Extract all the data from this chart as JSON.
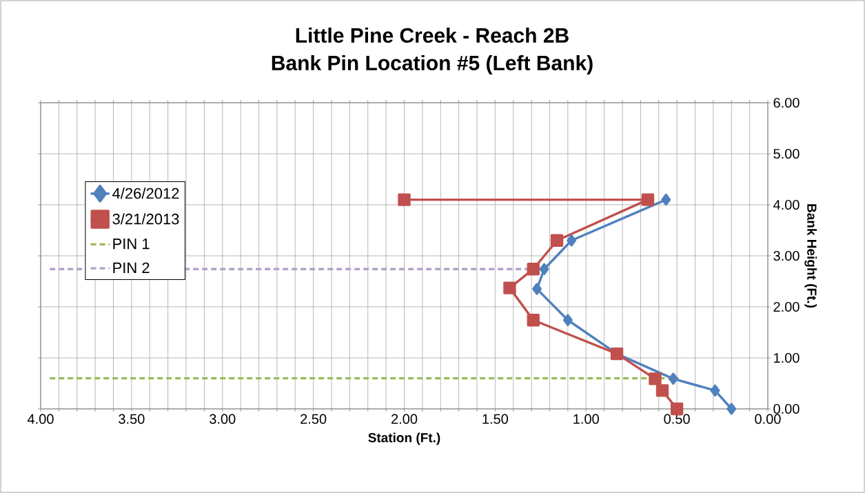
{
  "chart_data": {
    "type": "line",
    "title": "Little Pine Creek - Reach 2B\nBank Pin Location #5 (Left Bank)",
    "xlabel": "Station (Ft.)",
    "ylabel": "Bank Height (Ft.)",
    "xlim": [
      4,
      0
    ],
    "ylim": [
      0,
      6
    ],
    "xticks": [
      {
        "value": 4,
        "label": "4.00"
      },
      {
        "value": 3.9,
        "label": null
      },
      {
        "value": 3.8,
        "label": null
      },
      {
        "value": 3.7,
        "label": null
      },
      {
        "value": 3.6,
        "label": null
      },
      {
        "value": 3.5,
        "label": "3.50"
      },
      {
        "value": 3.4,
        "label": null
      },
      {
        "value": 3.3,
        "label": null
      },
      {
        "value": 3.2,
        "label": null
      },
      {
        "value": 3.1,
        "label": null
      },
      {
        "value": 3,
        "label": "3.00"
      },
      {
        "value": 2.9,
        "label": null
      },
      {
        "value": 2.8,
        "label": null
      },
      {
        "value": 2.7,
        "label": null
      },
      {
        "value": 2.6,
        "label": null
      },
      {
        "value": 2.5,
        "label": "2.50"
      },
      {
        "value": 2.4,
        "label": null
      },
      {
        "value": 2.3,
        "label": null
      },
      {
        "value": 2.2,
        "label": null
      },
      {
        "value": 2.1,
        "label": null
      },
      {
        "value": 2,
        "label": "2.00"
      },
      {
        "value": 1.9,
        "label": null
      },
      {
        "value": 1.8,
        "label": null
      },
      {
        "value": 1.7,
        "label": null
      },
      {
        "value": 1.6,
        "label": null
      },
      {
        "value": 1.5,
        "label": "1.50"
      },
      {
        "value": 1.4,
        "label": null
      },
      {
        "value": 1.3,
        "label": null
      },
      {
        "value": 1.2,
        "label": null
      },
      {
        "value": 1.1,
        "label": null
      },
      {
        "value": 1,
        "label": "1.00"
      },
      {
        "value": 0.9,
        "label": null
      },
      {
        "value": 0.8,
        "label": null
      },
      {
        "value": 0.7,
        "label": null
      },
      {
        "value": 0.6,
        "label": null
      },
      {
        "value": 0.5,
        "label": "0.50"
      },
      {
        "value": 0.4,
        "label": null
      },
      {
        "value": 0.3,
        "label": null
      },
      {
        "value": 0.2,
        "label": null
      },
      {
        "value": 0.1,
        "label": null
      },
      {
        "value": 0,
        "label": "0.00"
      }
    ],
    "yticks": [
      {
        "value": 0,
        "label": "0.00"
      },
      {
        "value": 1,
        "label": "1.00"
      },
      {
        "value": 2,
        "label": "2.00"
      },
      {
        "value": 3,
        "label": "3.00"
      },
      {
        "value": 4,
        "label": "4.00"
      },
      {
        "value": 5,
        "label": "5.00"
      },
      {
        "value": 6,
        "label": "6.00"
      }
    ],
    "grid": true,
    "legend": "left",
    "series": [
      {
        "name": "4/26/2012",
        "color": "#4f81bd",
        "marker": "diamond",
        "line_style": "solid",
        "x": [
          0.56,
          1.08,
          1.23,
          1.27,
          1.1,
          0.83,
          0.52,
          0.29,
          0.2
        ],
        "values": [
          4.1,
          3.3,
          2.74,
          2.35,
          1.74,
          1.08,
          0.59,
          0.36,
          0
        ]
      },
      {
        "name": "3/21/2013",
        "color": "#c0504d",
        "marker": "square",
        "line_style": "solid",
        "x": [
          2.0,
          0.66,
          1.16,
          1.29,
          1.42,
          1.29,
          0.83,
          0.62,
          0.58,
          0.5
        ],
        "values": [
          4.1,
          4.1,
          3.3,
          2.74,
          2.37,
          1.74,
          1.08,
          0.59,
          0.36,
          0
        ]
      },
      {
        "name": "PIN 1",
        "color": "#9bbb59",
        "marker": "none",
        "line_style": "dashed",
        "x": [
          3.95,
          0.49
        ],
        "values": [
          0.6,
          0.6
        ]
      },
      {
        "name": "PIN 2",
        "color": "#b3a2c7",
        "marker": "none",
        "line_style": "dashed",
        "x": [
          3.95,
          1.23
        ],
        "values": [
          2.74,
          2.74
        ]
      }
    ]
  }
}
